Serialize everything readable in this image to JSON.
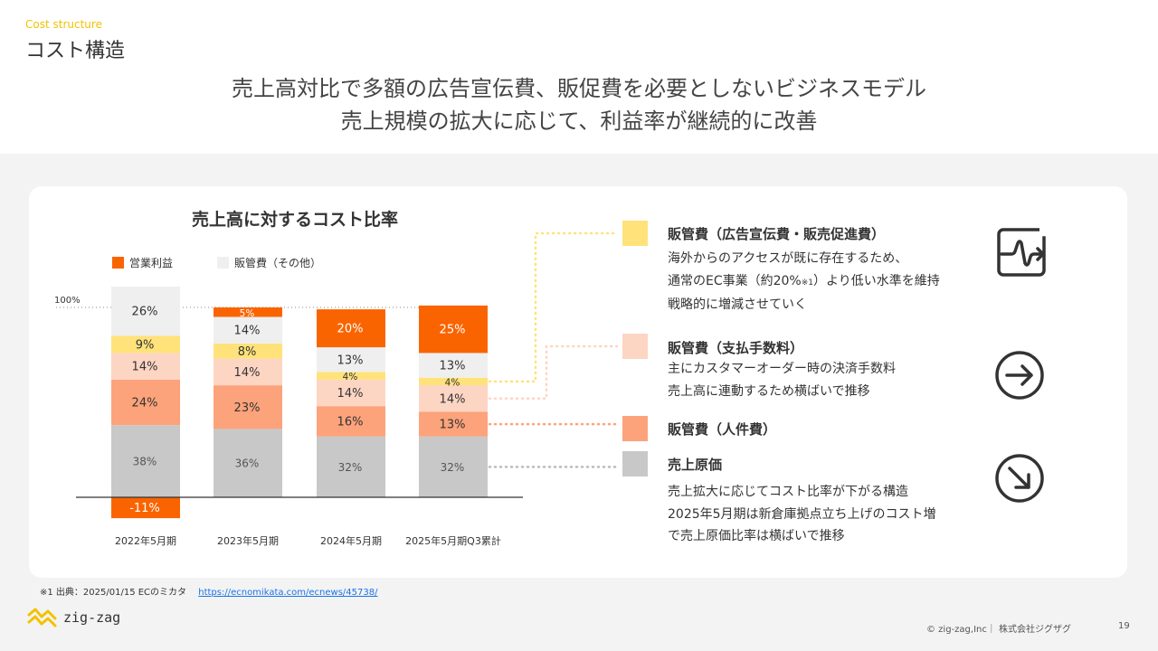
{
  "header": {
    "eyebrow": "Cost structure",
    "title": "コスト構造",
    "headline_1": "売上高対比で多額の広告宣伝費、販促費を必要としないビジネスモデル",
    "headline_2": "売上規模の拡大に応じて、利益率が継続的に改善"
  },
  "legend": {
    "operating_profit": "営業利益",
    "sga_other": "販管費（その他）"
  },
  "colors": {
    "operating_profit": "#fa6400",
    "sga_other": "#efefef",
    "sga_ad": "#ffe27a",
    "sga_fees": "#fdd5c3",
    "sga_personnel": "#fca37b",
    "cogs": "#c8c8c8"
  },
  "chart_data": {
    "type": "bar",
    "title": "売上高に対するコスト比率",
    "reference_line_label": "100%",
    "categories": [
      "2022年5月期",
      "2023年5月期",
      "2024年5月期",
      "2025年5月期Q3累計"
    ],
    "series": [
      {
        "name": "売上原価",
        "values": [
          38,
          36,
          32,
          32
        ],
        "labels": [
          "38%",
          "36%",
          "32%",
          "32%"
        ]
      },
      {
        "name": "販管費（人件費）",
        "values": [
          24,
          23,
          16,
          13
        ],
        "labels": [
          "24%",
          "23%",
          "16%",
          "13%"
        ]
      },
      {
        "name": "販管費（支払手数料）",
        "values": [
          14,
          14,
          14,
          14
        ],
        "labels": [
          "14%",
          "14%",
          "14%",
          "14%"
        ]
      },
      {
        "name": "販管費（広告宣伝費・販売促進費）",
        "values": [
          9,
          8,
          4,
          4
        ],
        "labels": [
          "9%",
          "8%",
          "4%",
          "4%"
        ]
      },
      {
        "name": "販管費（その他）",
        "values": [
          26,
          14,
          13,
          13
        ],
        "labels": [
          "26%",
          "14%",
          "13%",
          "13%"
        ]
      },
      {
        "name": "営業利益",
        "values": [
          -11,
          5,
          20,
          25
        ],
        "labels": [
          "-11%",
          "5%",
          "20%",
          "25%"
        ]
      }
    ]
  },
  "right_panel": {
    "ad": {
      "label": "販管費（広告宣伝費・販売促進費）",
      "line1": "海外からのアクセスが既に存在するため、",
      "line2a": "通常のEC事業（約20%",
      "line2_note": "※1",
      "line2b": "）より低い水準を維持",
      "line3": "戦略的に増減させていく",
      "icon": "squiggle-arrow-icon"
    },
    "fees": {
      "label": "販管費（支払手数料）",
      "line1": "主にカスタマーオーダー時の決済手数料",
      "line2": "売上高に連動するため横ばいで推移",
      "icon": "arrow-right-circle-icon"
    },
    "personnel": {
      "label": "販管費（人件費）"
    },
    "cogs": {
      "label": "売上原価",
      "line1": "売上拡大に応じてコスト比率が下がる構造",
      "line2": "2025年5月期は新倉庫拠点立ち上げのコスト増",
      "line3": "で売上原価比率は横ばいで推移",
      "icon": "arrow-down-right-circle-icon"
    }
  },
  "footer": {
    "footnote": "※1  出典：2025/01/15 ECのミカタ",
    "footnote_link": "https://ecnomikata.com/ecnews/45738/",
    "logo_text": "zig-zag",
    "copyright": "© zig-zag,Inc｜ 株式会社ジグザグ",
    "page": "19"
  }
}
